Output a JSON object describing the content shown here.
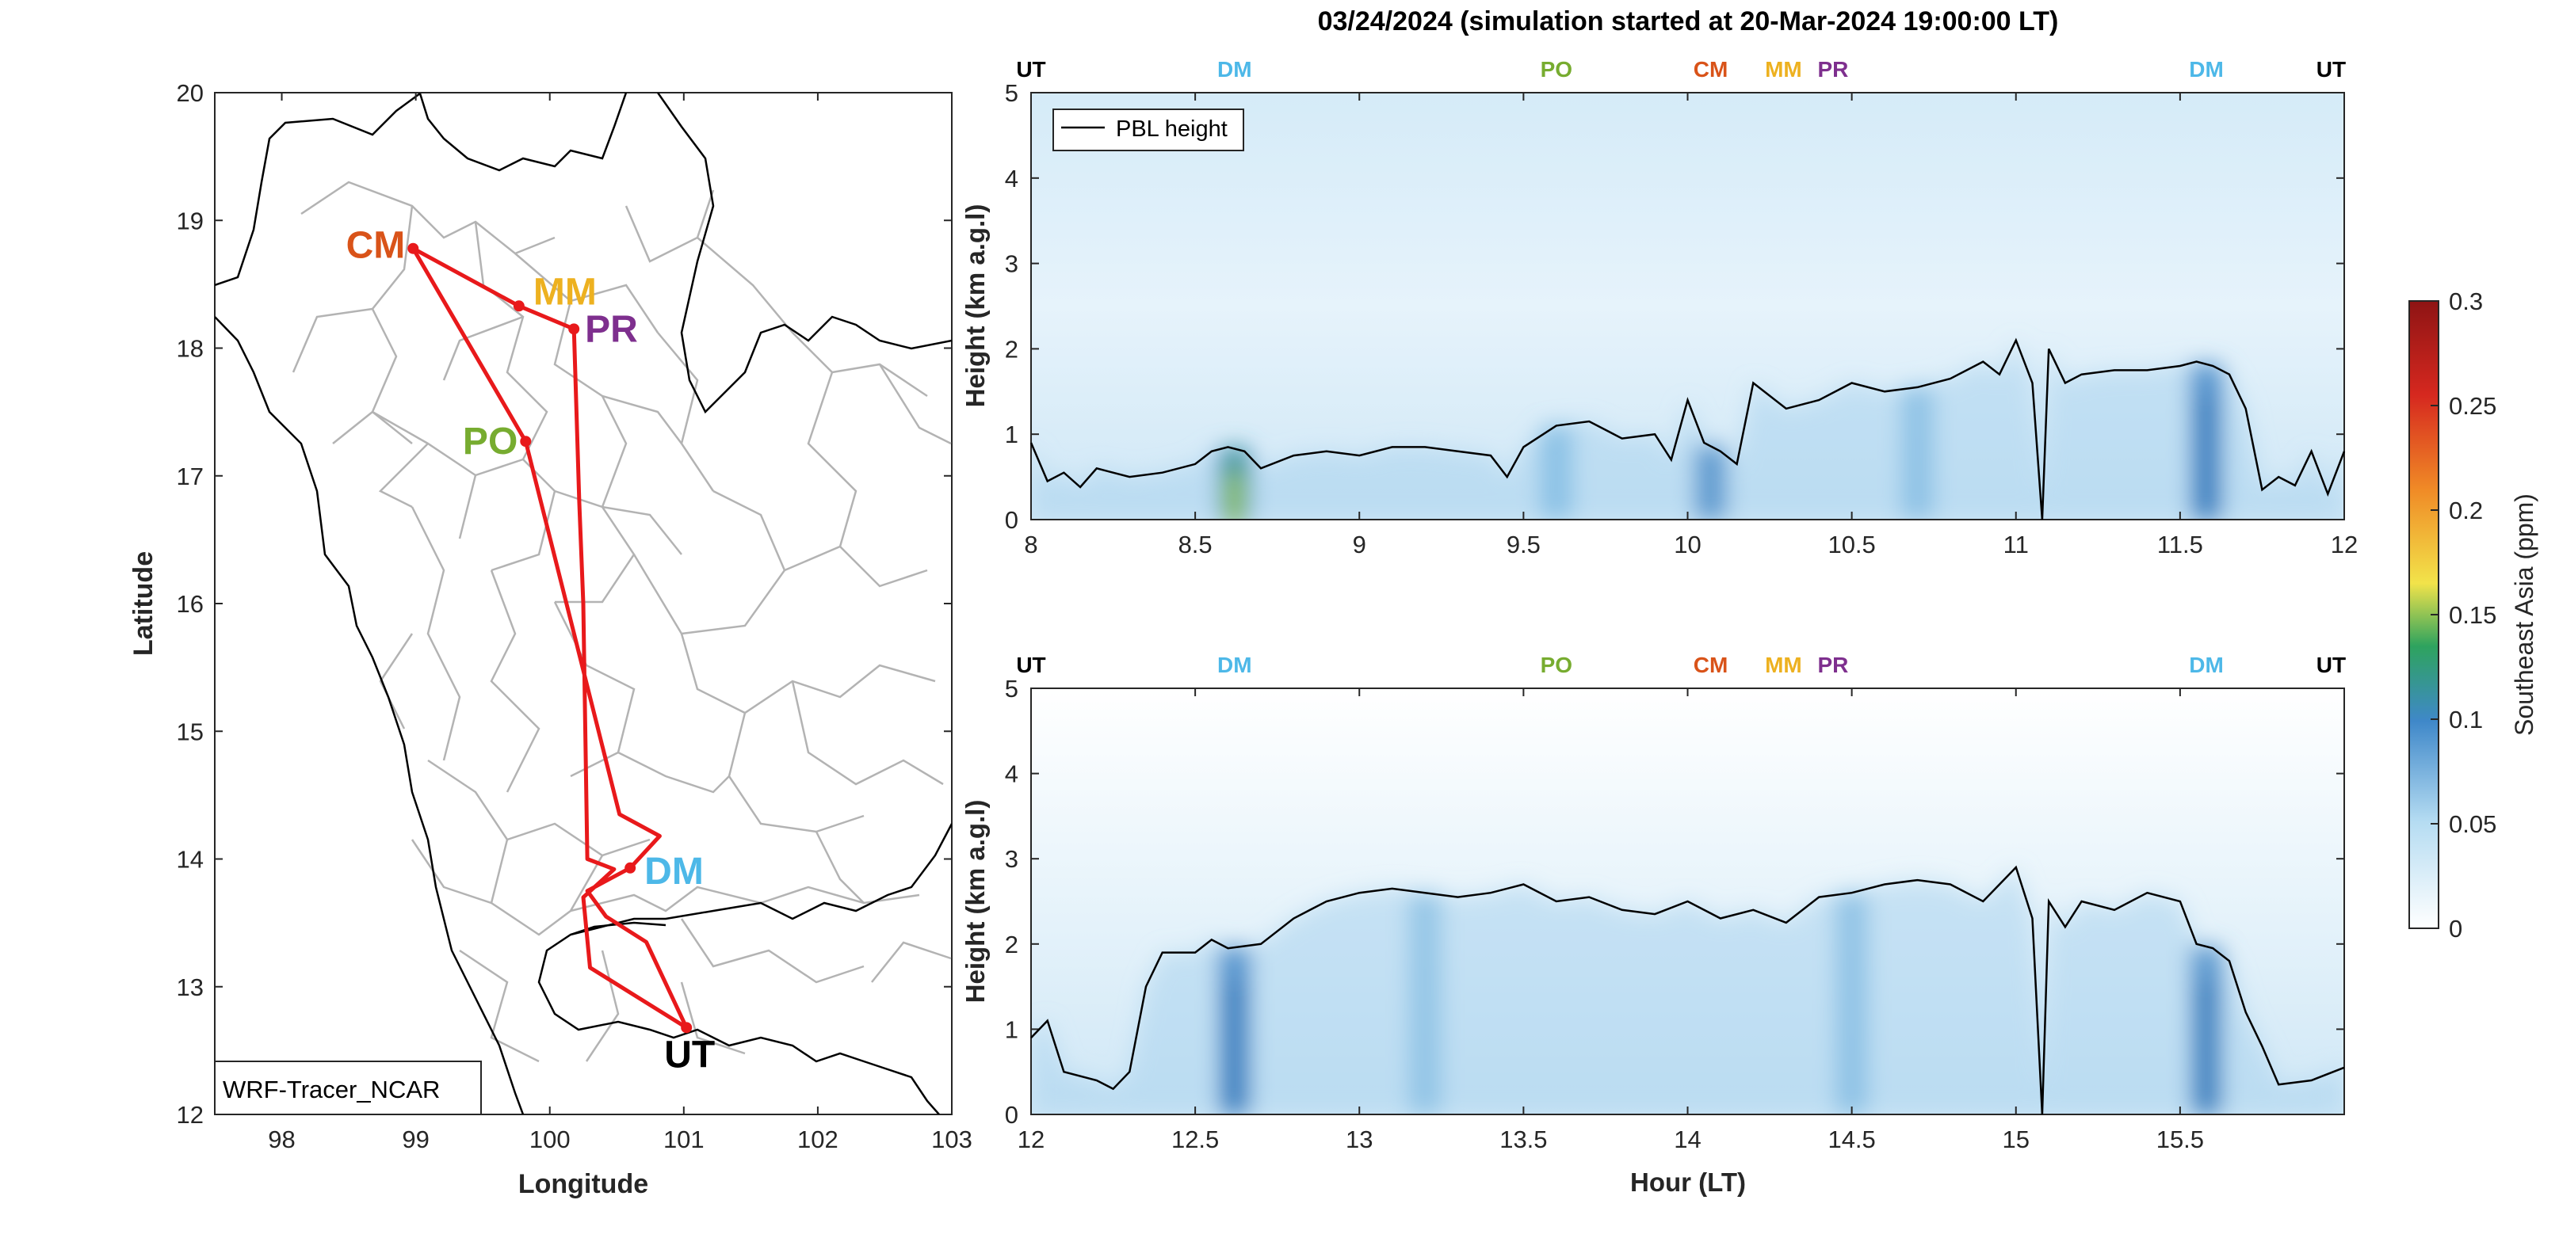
{
  "main_title": "03/24/2024 (simulation started at 20-Mar-2024 19:00:00 LT)",
  "colors": {
    "route": "#e8191b",
    "UT": "#000000",
    "DM": "#4db8e8",
    "PO": "#77ac30",
    "CM": "#d95319",
    "MM": "#edb120",
    "PR": "#7e2f8e",
    "pbl_line": "#000000"
  },
  "map": {
    "xlabel": "Longitude",
    "ylabel": "Latitude",
    "xlim": [
      97.5,
      103
    ],
    "ylim": [
      12,
      20
    ],
    "xticks": [
      "98",
      "99",
      "100",
      "101",
      "102",
      "103"
    ],
    "yticks": [
      "12",
      "13",
      "14",
      "15",
      "16",
      "17",
      "18",
      "19",
      "20"
    ],
    "model_label": "WRF-Tracer_NCAR",
    "stations": [
      {
        "code": "CM",
        "lon": 98.98,
        "lat": 18.78
      },
      {
        "code": "MM",
        "lon": 99.77,
        "lat": 18.33
      },
      {
        "code": "PR",
        "lon": 100.18,
        "lat": 18.15
      },
      {
        "code": "PO",
        "lon": 99.82,
        "lat": 17.27
      },
      {
        "code": "DM",
        "lon": 100.6,
        "lat": 13.93
      },
      {
        "code": "UT",
        "lon": 101.02,
        "lat": 12.68
      }
    ]
  },
  "colorbar": {
    "label": "Southeast Asia (ppm)",
    "ticks": [
      "0",
      "0.05",
      "0.1",
      "0.15",
      "0.2",
      "0.25",
      "0.3"
    ],
    "range": [
      0,
      0.3
    ]
  },
  "chart_data": [
    {
      "type": "heatmap",
      "xlabel": "",
      "ylabel": "Height (km a.g.l)",
      "xlim": [
        8,
        12
      ],
      "ylim": [
        0,
        5
      ],
      "xticks": [
        "8",
        "8.5",
        "9",
        "9.5",
        "10",
        "10.5",
        "11",
        "11.5",
        "12"
      ],
      "yticks": [
        "0",
        "1",
        "2",
        "3",
        "4",
        "5"
      ],
      "legend": "PBL height",
      "legend_position": "top-left",
      "station_markers": [
        {
          "code": "UT",
          "hour": 8.0
        },
        {
          "code": "DM",
          "hour": 8.62
        },
        {
          "code": "PO",
          "hour": 9.6
        },
        {
          "code": "CM",
          "hour": 10.07
        },
        {
          "code": "MM",
          "hour": 10.3
        },
        {
          "code": "PR",
          "hour": 10.42
        },
        {
          "code": "DM",
          "hour": 11.58
        },
        {
          "code": "UT",
          "hour": 11.96
        }
      ],
      "pbl_height": {
        "x": [
          8.0,
          8.05,
          8.1,
          8.15,
          8.2,
          8.3,
          8.4,
          8.5,
          8.55,
          8.6,
          8.65,
          8.7,
          8.8,
          8.9,
          9.0,
          9.1,
          9.2,
          9.3,
          9.4,
          9.45,
          9.5,
          9.6,
          9.7,
          9.8,
          9.9,
          9.95,
          10.0,
          10.05,
          10.1,
          10.15,
          10.2,
          10.3,
          10.4,
          10.5,
          10.6,
          10.7,
          10.8,
          10.9,
          10.95,
          11.0,
          11.05,
          11.08,
          11.1,
          11.15,
          11.2,
          11.3,
          11.4,
          11.5,
          11.55,
          11.6,
          11.65,
          11.7,
          11.75,
          11.8,
          11.85,
          11.9,
          11.95,
          12.0
        ],
        "y": [
          0.9,
          0.45,
          0.55,
          0.38,
          0.6,
          0.5,
          0.55,
          0.65,
          0.8,
          0.85,
          0.8,
          0.6,
          0.75,
          0.8,
          0.75,
          0.85,
          0.85,
          0.8,
          0.75,
          0.5,
          0.85,
          1.1,
          1.15,
          0.95,
          1.0,
          0.7,
          1.4,
          0.9,
          0.8,
          0.65,
          1.6,
          1.3,
          1.4,
          1.6,
          1.5,
          1.55,
          1.65,
          1.85,
          1.7,
          2.1,
          1.6,
          0.0,
          2.0,
          1.6,
          1.7,
          1.75,
          1.75,
          1.8,
          1.85,
          1.8,
          1.7,
          1.3,
          0.35,
          0.5,
          0.4,
          0.8,
          0.3,
          0.8
        ]
      },
      "plumes": [
        {
          "hour": 8.62,
          "peak": 0.16
        },
        {
          "hour": 9.6,
          "peak": 0.06
        },
        {
          "hour": 10.07,
          "peak": 0.08
        },
        {
          "hour": 10.7,
          "peak": 0.05
        },
        {
          "hour": 11.58,
          "peak": 0.1
        }
      ]
    },
    {
      "type": "heatmap",
      "xlabel": "Hour (LT)",
      "ylabel": "Height (km a.g.l)",
      "xlim": [
        12,
        16
      ],
      "ylim": [
        0,
        5
      ],
      "xticks": [
        "12",
        "12.5",
        "13",
        "13.5",
        "14",
        "14.5",
        "15",
        "15.5"
      ],
      "yticks": [
        "0",
        "1",
        "2",
        "3",
        "4",
        "5"
      ],
      "station_markers": [
        {
          "code": "UT",
          "hour": 12.0
        },
        {
          "code": "DM",
          "hour": 12.62
        },
        {
          "code": "PO",
          "hour": 13.6
        },
        {
          "code": "CM",
          "hour": 14.07
        },
        {
          "code": "MM",
          "hour": 14.3
        },
        {
          "code": "PR",
          "hour": 14.42
        },
        {
          "code": "DM",
          "hour": 15.58
        },
        {
          "code": "UT",
          "hour": 15.96
        }
      ],
      "pbl_height": {
        "x": [
          12.0,
          12.05,
          12.1,
          12.2,
          12.25,
          12.3,
          12.35,
          12.4,
          12.5,
          12.55,
          12.6,
          12.7,
          12.8,
          12.9,
          13.0,
          13.1,
          13.2,
          13.3,
          13.4,
          13.5,
          13.6,
          13.7,
          13.8,
          13.9,
          14.0,
          14.1,
          14.2,
          14.3,
          14.4,
          14.5,
          14.6,
          14.7,
          14.8,
          14.9,
          15.0,
          15.05,
          15.08,
          15.1,
          15.15,
          15.2,
          15.3,
          15.4,
          15.5,
          15.55,
          15.6,
          15.65,
          15.7,
          15.75,
          15.8,
          15.9,
          16.0
        ],
        "y": [
          0.9,
          1.1,
          0.5,
          0.4,
          0.3,
          0.5,
          1.5,
          1.9,
          1.9,
          2.05,
          1.95,
          2.0,
          2.3,
          2.5,
          2.6,
          2.65,
          2.6,
          2.55,
          2.6,
          2.7,
          2.5,
          2.55,
          2.4,
          2.35,
          2.5,
          2.3,
          2.4,
          2.25,
          2.55,
          2.6,
          2.7,
          2.75,
          2.7,
          2.5,
          2.9,
          2.3,
          0.0,
          2.5,
          2.2,
          2.5,
          2.4,
          2.6,
          2.5,
          2.0,
          1.95,
          1.8,
          1.2,
          0.8,
          0.35,
          0.4,
          0.55
        ]
      },
      "plumes": [
        {
          "hour": 12.62,
          "peak": 0.1
        },
        {
          "hour": 13.2,
          "peak": 0.04
        },
        {
          "hour": 14.5,
          "peak": 0.05
        },
        {
          "hour": 15.58,
          "peak": 0.09
        }
      ]
    }
  ]
}
